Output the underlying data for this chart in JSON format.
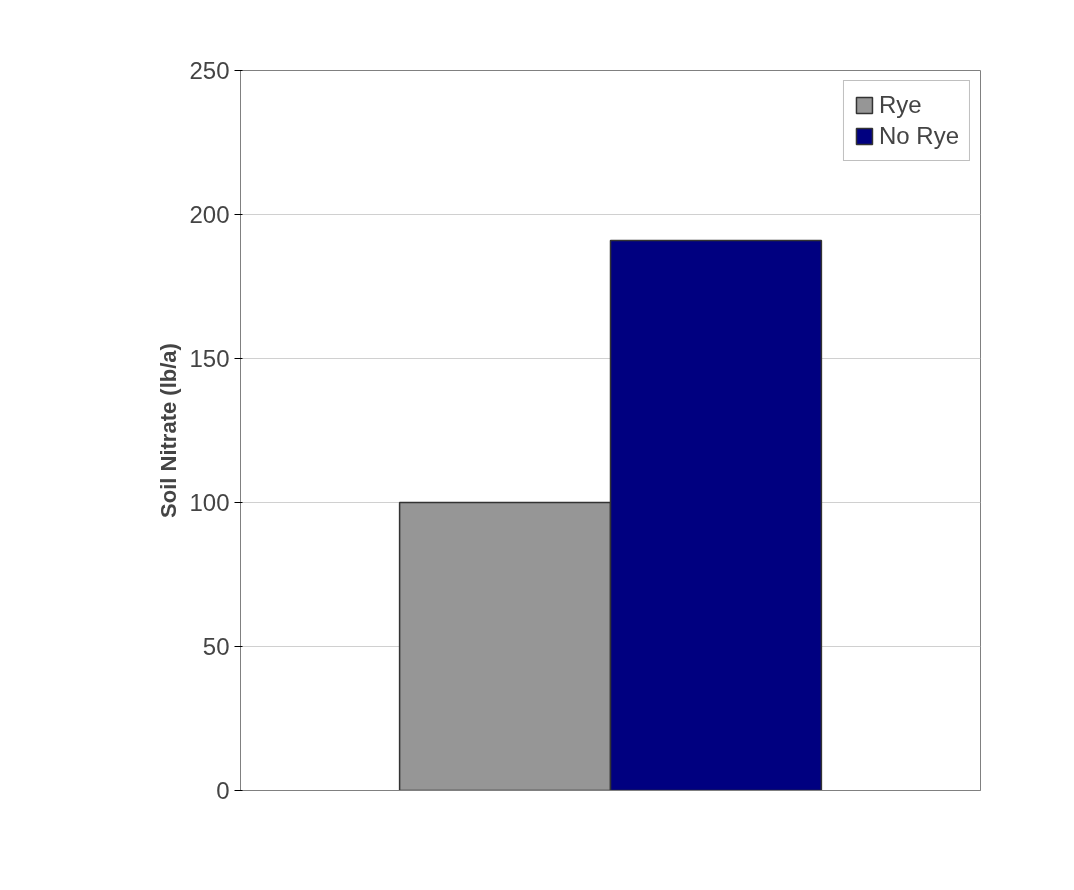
{
  "chart_data": {
    "type": "bar",
    "ylabel": "Soil Nitrate (lb/a)",
    "categories": [
      null
    ],
    "series": [
      {
        "name": "Rye",
        "color": "#969696",
        "values": [
          100
        ]
      },
      {
        "name": "No Rye",
        "color": "#000080",
        "values": [
          191
        ]
      }
    ],
    "ylim": [
      0,
      250
    ],
    "yticks": [
      0,
      50,
      100,
      150,
      200,
      250
    ],
    "grid": "y",
    "legend": "top right",
    "tick_labels": "y"
  }
}
